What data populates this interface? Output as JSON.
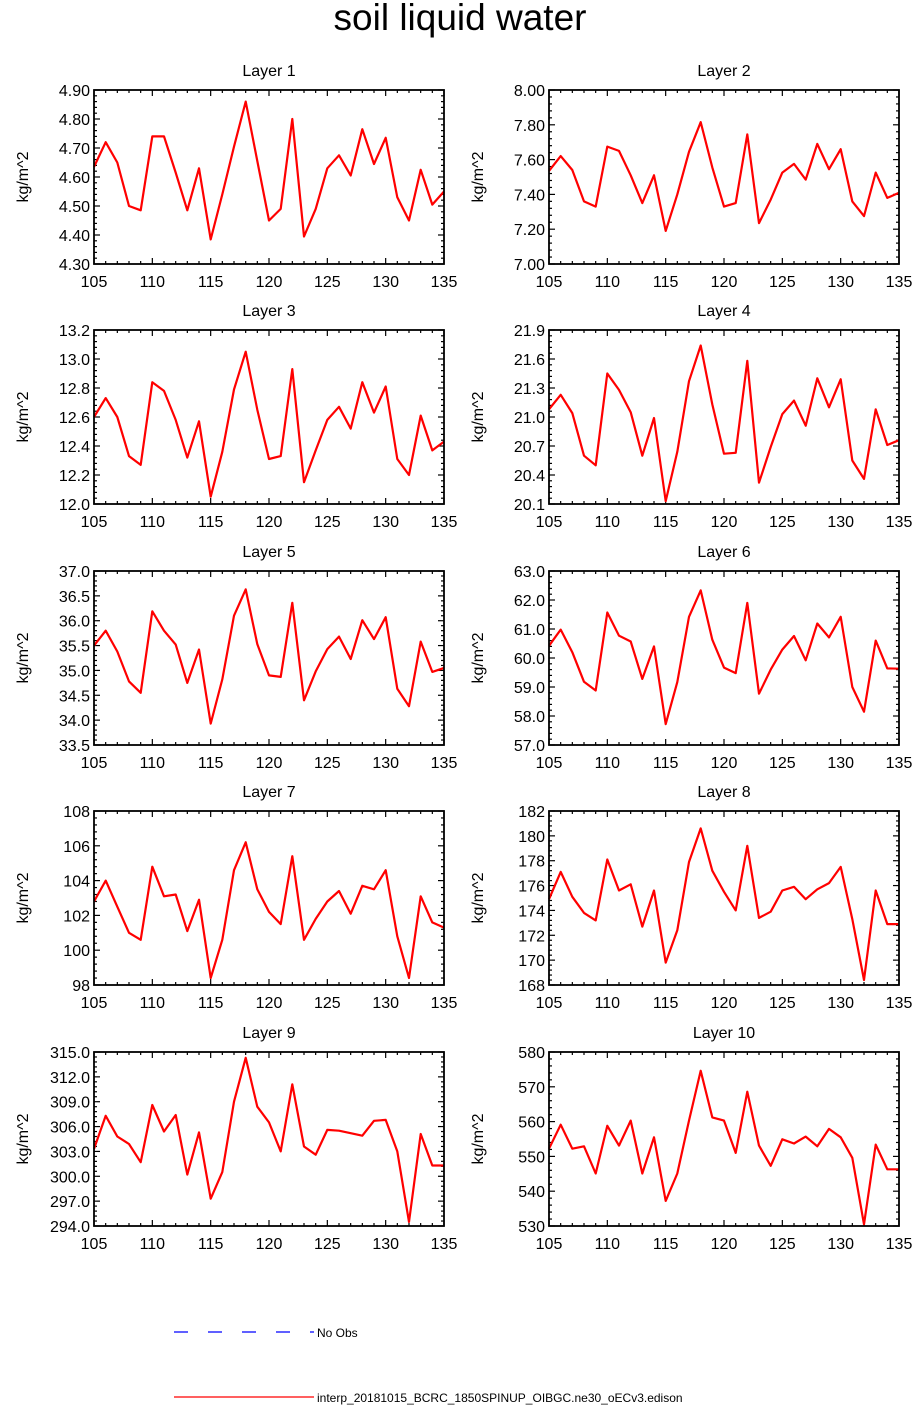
{
  "chart_data": {
    "type": "line",
    "title": "soil liquid water",
    "colors": {
      "model": "#ff0000",
      "obs": "#0000ff"
    },
    "legend": {
      "placement": "bottom",
      "entries": [
        {
          "label": "No Obs",
          "style": "dashed",
          "color": "#0000ff"
        },
        {
          "label": "interp_20181015_BCRC_1850SPINUP_OIBGC.ne30_oECv3.edison",
          "style": "solid",
          "color": "#ff0000"
        }
      ]
    },
    "x": [
      105,
      106,
      107,
      108,
      109,
      110,
      111,
      112,
      113,
      114,
      115,
      116,
      117,
      118,
      119,
      120,
      121,
      122,
      123,
      124,
      125,
      126,
      127,
      128,
      129,
      130,
      131,
      132,
      133,
      134,
      135
    ],
    "xlim": [
      105,
      135
    ],
    "xticks": [
      "105",
      "110",
      "115",
      "120",
      "125",
      "130",
      "135"
    ],
    "panels": [
      {
        "title": "Layer 1",
        "ylabel": "kg/m^2",
        "ylim": [
          4.3,
          4.9
        ],
        "yticks": [
          "4.30",
          "4.40",
          "4.50",
          "4.60",
          "4.70",
          "4.80",
          "4.90"
        ],
        "values": [
          4.635,
          4.72,
          4.65,
          4.5,
          4.485,
          4.74,
          4.74,
          4.615,
          4.485,
          4.63,
          4.385,
          4.54,
          4.705,
          4.86,
          4.655,
          4.45,
          4.49,
          4.8,
          4.395,
          4.49,
          4.63,
          4.675,
          4.605,
          4.765,
          4.645,
          4.735,
          4.53,
          4.45,
          4.625,
          4.505,
          4.55
        ]
      },
      {
        "title": "Layer 2",
        "ylabel": "kg/m^2",
        "ylim": [
          7.0,
          8.0
        ],
        "yticks": [
          "7.00",
          "7.20",
          "7.40",
          "7.60",
          "7.80",
          "8.00"
        ],
        "values": [
          7.535,
          7.62,
          7.54,
          7.36,
          7.33,
          7.675,
          7.65,
          7.51,
          7.35,
          7.51,
          7.19,
          7.4,
          7.645,
          7.815,
          7.555,
          7.33,
          7.35,
          7.745,
          7.235,
          7.37,
          7.525,
          7.575,
          7.485,
          7.69,
          7.545,
          7.66,
          7.36,
          7.275,
          7.525,
          7.38,
          7.41
        ]
      },
      {
        "title": "Layer 3",
        "ylabel": "kg/m^2",
        "ylim": [
          12.0,
          13.2
        ],
        "yticks": [
          "12.0",
          "12.2",
          "12.4",
          "12.6",
          "12.8",
          "13.0",
          "13.2"
        ],
        "values": [
          12.6,
          12.73,
          12.6,
          12.33,
          12.27,
          12.84,
          12.78,
          12.58,
          12.32,
          12.57,
          12.05,
          12.36,
          12.79,
          13.05,
          12.65,
          12.31,
          12.33,
          12.93,
          12.15,
          12.37,
          12.58,
          12.67,
          12.52,
          12.84,
          12.63,
          12.81,
          12.31,
          12.2,
          12.61,
          12.37,
          12.43
        ]
      },
      {
        "title": "Layer 4",
        "ylabel": "kg/m^2",
        "ylim": [
          20.1,
          21.9
        ],
        "yticks": [
          "20.1",
          "20.4",
          "20.7",
          "21.0",
          "21.3",
          "21.6",
          "21.9"
        ],
        "values": [
          21.08,
          21.23,
          21.04,
          20.6,
          20.5,
          21.45,
          21.28,
          21.05,
          20.6,
          20.99,
          20.13,
          20.64,
          21.37,
          21.74,
          21.13,
          20.62,
          20.63,
          21.58,
          20.32,
          20.69,
          21.03,
          21.17,
          20.91,
          21.4,
          21.1,
          21.39,
          20.55,
          20.36,
          21.08,
          20.71,
          20.76
        ]
      },
      {
        "title": "Layer 5",
        "ylabel": "kg/m^2",
        "ylim": [
          33.5,
          37.0
        ],
        "yticks": [
          "33.5",
          "34.0",
          "34.5",
          "35.0",
          "35.5",
          "36.0",
          "36.5",
          "37.0"
        ],
        "values": [
          35.5,
          35.8,
          35.38,
          34.78,
          34.55,
          36.19,
          35.8,
          35.52,
          34.75,
          35.42,
          33.93,
          34.82,
          36.1,
          36.63,
          35.53,
          34.9,
          34.87,
          36.36,
          34.4,
          34.98,
          35.43,
          35.68,
          35.23,
          36.01,
          35.63,
          36.07,
          34.63,
          34.28,
          35.58,
          34.97,
          35.05
        ]
      },
      {
        "title": "Layer 6",
        "ylabel": "kg/m^2",
        "ylim": [
          57.0,
          63.0
        ],
        "yticks": [
          "57.0",
          "58.0",
          "59.0",
          "60.0",
          "61.0",
          "62.0",
          "63.0"
        ],
        "values": [
          60.42,
          60.98,
          60.2,
          59.18,
          58.88,
          61.57,
          60.77,
          60.57,
          59.28,
          60.4,
          57.72,
          59.17,
          61.42,
          62.33,
          60.63,
          59.67,
          59.48,
          61.9,
          58.77,
          59.6,
          60.29,
          60.76,
          59.92,
          61.19,
          60.71,
          61.42,
          59.0,
          58.15,
          60.6,
          59.64,
          59.63
        ]
      },
      {
        "title": "Layer 7",
        "ylabel": "kg/m^2",
        "ylim": [
          98,
          108
        ],
        "yticks": [
          "98",
          "100",
          "102",
          "104",
          "106",
          "108"
        ],
        "values": [
          102.8,
          104.0,
          102.5,
          101.0,
          100.6,
          104.8,
          103.1,
          103.2,
          101.1,
          102.9,
          98.4,
          100.6,
          104.6,
          106.2,
          103.5,
          102.2,
          101.5,
          105.4,
          100.6,
          101.8,
          102.8,
          103.4,
          102.1,
          103.7,
          103.5,
          104.6,
          100.8,
          98.4,
          103.1,
          101.6,
          101.3
        ]
      },
      {
        "title": "Layer 8",
        "ylabel": "kg/m^2",
        "ylim": [
          168,
          182
        ],
        "yticks": [
          "168",
          "170",
          "172",
          "174",
          "176",
          "178",
          "180",
          "182"
        ],
        "values": [
          174.9,
          177.1,
          175.1,
          173.8,
          173.2,
          178.1,
          175.6,
          176.1,
          172.7,
          175.6,
          169.8,
          172.4,
          177.9,
          180.6,
          177.2,
          175.5,
          174.0,
          179.2,
          173.4,
          173.9,
          175.6,
          175.9,
          174.9,
          175.7,
          176.2,
          177.5,
          173.3,
          168.4,
          175.6,
          172.9,
          172.9
        ]
      },
      {
        "title": "Layer 9",
        "ylabel": "kg/m^2",
        "ylim": [
          294.0,
          315.0
        ],
        "yticks": [
          "294.0",
          "297.0",
          "300.0",
          "303.0",
          "306.0",
          "309.0",
          "312.0",
          "315.0"
        ],
        "values": [
          303.3,
          307.3,
          304.8,
          303.9,
          301.7,
          308.6,
          305.4,
          307.4,
          300.2,
          305.3,
          297.3,
          300.5,
          309.0,
          314.3,
          308.4,
          306.5,
          303.0,
          311.1,
          303.6,
          302.6,
          305.6,
          305.5,
          305.2,
          304.9,
          306.7,
          306.8,
          303.0,
          294.5,
          305.1,
          301.3,
          301.3
        ]
      },
      {
        "title": "Layer 10",
        "ylabel": "kg/m^2",
        "ylim": [
          530,
          580
        ],
        "yticks": [
          "530",
          "540",
          "550",
          "560",
          "570",
          "580"
        ],
        "values": [
          552.2,
          559.1,
          552.2,
          552.9,
          545.1,
          558.8,
          553.1,
          560.3,
          545.1,
          555.5,
          537.2,
          545.1,
          560.3,
          574.6,
          561.2,
          560.3,
          551.0,
          568.6,
          553.1,
          547.3,
          554.9,
          553.7,
          555.7,
          552.9,
          557.9,
          555.5,
          549.6,
          530.5,
          553.4,
          546.3,
          546.3
        ]
      }
    ]
  }
}
